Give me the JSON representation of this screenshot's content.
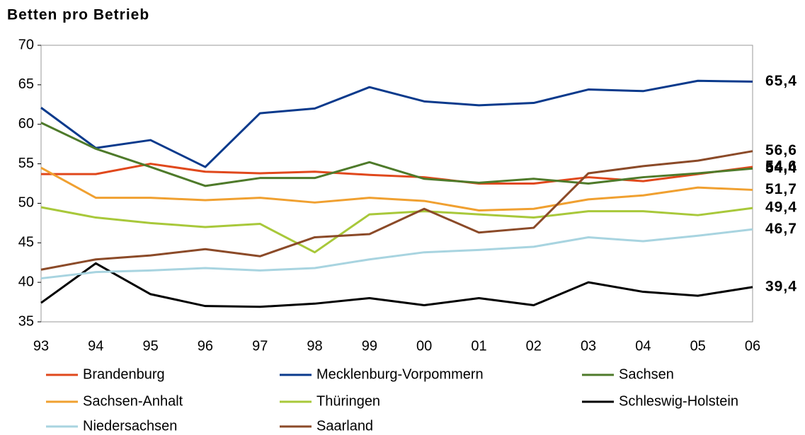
{
  "chart_data": {
    "type": "line",
    "title": "Betten pro Betrieb",
    "categories": [
      "93",
      "94",
      "95",
      "96",
      "97",
      "98",
      "99",
      "00",
      "01",
      "02",
      "03",
      "04",
      "05",
      "06"
    ],
    "ylim": [
      35,
      70
    ],
    "yticks": [
      35,
      40,
      45,
      50,
      55,
      60,
      65,
      70
    ],
    "grid": false,
    "series": [
      {
        "name": "Brandenburg",
        "color": "#e0481c",
        "values": [
          53.7,
          53.7,
          55.0,
          54.0,
          53.8,
          54.0,
          53.6,
          53.3,
          52.5,
          52.5,
          53.3,
          52.8,
          53.7,
          54.6
        ],
        "value_labels": [
          null,
          null,
          null,
          null,
          null,
          null,
          null,
          null,
          null,
          null,
          null,
          null,
          null,
          "54,6"
        ]
      },
      {
        "name": "Mecklenburg-Vorpommern",
        "color": "#0a3a8c",
        "values": [
          62.1,
          57.0,
          58.0,
          54.6,
          61.4,
          62.0,
          64.7,
          62.9,
          62.4,
          62.7,
          64.4,
          64.2,
          65.5,
          65.4
        ],
        "value_labels": [
          null,
          null,
          null,
          null,
          null,
          null,
          null,
          null,
          null,
          null,
          null,
          null,
          null,
          "65,4"
        ]
      },
      {
        "name": "Sachsen",
        "color": "#4e7a2a",
        "values": [
          60.2,
          56.9,
          54.6,
          52.2,
          53.2,
          53.2,
          55.2,
          53.1,
          52.6,
          53.1,
          52.5,
          53.3,
          53.8,
          54.4
        ],
        "value_labels": [
          null,
          null,
          null,
          null,
          null,
          null,
          null,
          null,
          null,
          null,
          null,
          null,
          null,
          "54,4"
        ]
      },
      {
        "name": "Sachsen-Anhalt",
        "color": "#f0a030",
        "values": [
          54.5,
          50.7,
          50.7,
          50.4,
          50.7,
          50.1,
          50.7,
          50.3,
          49.1,
          49.3,
          50.5,
          51.0,
          52.0,
          51.7
        ],
        "value_labels": [
          null,
          null,
          null,
          null,
          null,
          null,
          null,
          null,
          null,
          null,
          null,
          null,
          null,
          "51,7"
        ]
      },
      {
        "name": "Thüringen",
        "color": "#a8c83a",
        "values": [
          49.5,
          48.2,
          47.5,
          47.0,
          47.4,
          43.8,
          48.6,
          49.0,
          48.6,
          48.2,
          49.0,
          49.0,
          48.5,
          49.4
        ],
        "value_labels": [
          null,
          null,
          null,
          null,
          null,
          null,
          null,
          null,
          null,
          null,
          null,
          null,
          null,
          "49,4"
        ]
      },
      {
        "name": "Schleswig-Holstein",
        "color": "#000000",
        "values": [
          37.4,
          42.4,
          38.5,
          37.0,
          36.9,
          37.3,
          38.0,
          37.1,
          38.0,
          37.1,
          40.0,
          38.8,
          38.3,
          39.4
        ],
        "value_labels": [
          null,
          null,
          null,
          null,
          null,
          null,
          null,
          null,
          null,
          null,
          null,
          null,
          null,
          "39,4"
        ]
      },
      {
        "name": "Niedersachsen",
        "color": "#a8d4e0",
        "values": [
          40.5,
          41.3,
          41.5,
          41.8,
          41.5,
          41.8,
          42.9,
          43.8,
          44.1,
          44.5,
          45.7,
          45.2,
          45.9,
          46.7
        ],
        "value_labels": [
          null,
          null,
          null,
          null,
          null,
          null,
          null,
          null,
          null,
          null,
          null,
          null,
          null,
          "46,7"
        ]
      },
      {
        "name": "Saarland",
        "color": "#8b4a28",
        "values": [
          41.6,
          42.9,
          43.4,
          44.2,
          43.3,
          45.7,
          46.1,
          49.3,
          46.3,
          46.9,
          53.8,
          54.7,
          55.4,
          56.6
        ],
        "value_labels": [
          null,
          null,
          null,
          null,
          null,
          null,
          null,
          null,
          null,
          null,
          null,
          null,
          null,
          "56,6"
        ]
      }
    ]
  }
}
